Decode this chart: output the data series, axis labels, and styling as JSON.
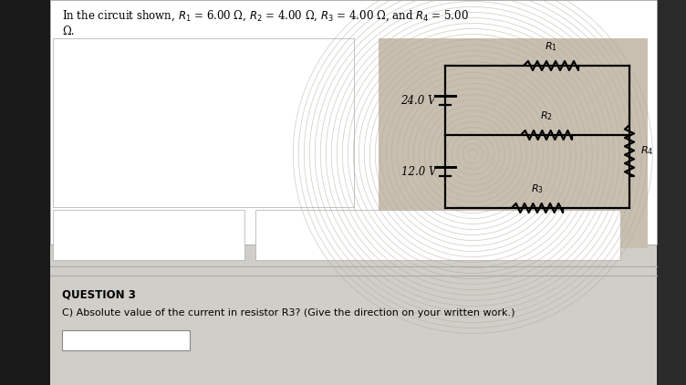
{
  "bg_color": "#b8b8b8",
  "page_bg": "#d0cec8",
  "title_text1": "In the circuit shown, $R_1$ = 6.00 Ω, $R_2$ = 4.00 Ω, $R_3$ = 4.00 Ω, and $R_4$ = 5.00",
  "title_text2": "Ω.",
  "question_label": "QUESTION 3",
  "question_text": "C) Absolute value of the current in resistor R3? (Give the direction on your written work.)",
  "v1_label": "24.0 V",
  "v2_label": "12.0 V",
  "r1_label": "$R_1$",
  "r2_label": "$R_2$",
  "r3_label": "$R_3$",
  "r4_label": "$R_4$",
  "circ_bg": "#c8bfb0",
  "wavy_color": "#b0a898",
  "left_panel_bg": "#ffffff",
  "dark_strip_left": "#1a1a1a",
  "dark_strip_right": "#2a2a2a"
}
